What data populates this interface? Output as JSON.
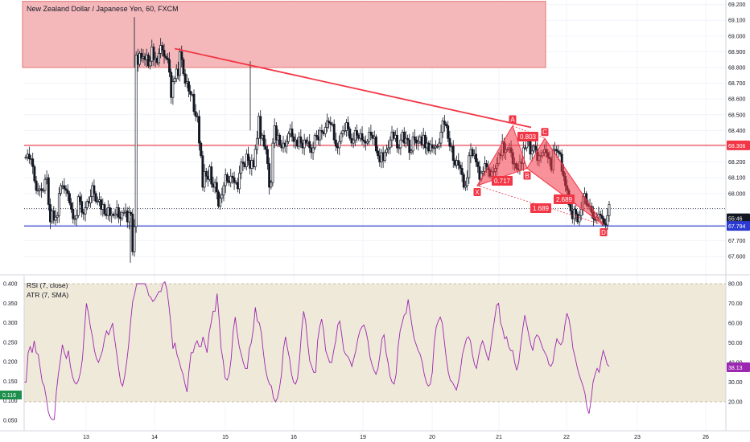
{
  "chart_data": [
    {
      "type": "candlestick",
      "title": "New Zealand Dollar / Japanese Yen, 60, FXCM",
      "symbol": "NZDJPY",
      "timeframe": "60",
      "source": "FXCM",
      "ylim": [
        67.5,
        69.22
      ],
      "yticks": [
        "69.200",
        "69.100",
        "69.000",
        "68.900",
        "68.800",
        "68.700",
        "68.600",
        "68.500",
        "68.400",
        "68.300",
        "68.200",
        "68.100",
        "68.000",
        "67.900",
        "67.800",
        "67.700",
        "67.600"
      ],
      "xticks": [
        "13",
        "14",
        "15",
        "16",
        "19",
        "20",
        "21",
        "22",
        "23",
        "26"
      ],
      "close_series": [
        68.23,
        68.25,
        68.22,
        68.22,
        68.17,
        68.08,
        68.02,
        68.02,
        68.03,
        68.02,
        68.02,
        68.09,
        68.1,
        67.93,
        67.82,
        67.89,
        67.83,
        67.85,
        67.86,
        68.0,
        68.05,
        68.05,
        68.03,
        68.02,
        68.0,
        67.94,
        67.9,
        67.84,
        67.84,
        67.86,
        67.98,
        67.95,
        67.88,
        67.87,
        67.91,
        67.95,
        67.94,
        67.98,
        68.05,
        68.0,
        67.95,
        67.95,
        67.96,
        67.9,
        67.93,
        67.87,
        67.86,
        67.91,
        67.86,
        67.87,
        67.86,
        67.87,
        67.91,
        67.85,
        67.84,
        67.88,
        67.88,
        67.89,
        67.82,
        67.88,
        67.87,
        67.63,
        67.79,
        68.88,
        68.82,
        68.89,
        68.86,
        68.87,
        68.85,
        68.88,
        68.81,
        68.84,
        68.93,
        68.85,
        68.86,
        68.83,
        68.89,
        68.94,
        68.91,
        68.87,
        68.86,
        68.85,
        68.77,
        68.61,
        68.71,
        68.73,
        68.79,
        68.75,
        68.9,
        68.85,
        68.76,
        68.7,
        68.71,
        68.65,
        68.63,
        68.63,
        68.52,
        68.49,
        68.49,
        68.32,
        68.24,
        68.04,
        68.14,
        68.11,
        68.09,
        68.17,
        68.06,
        68.04,
        68.07,
        68.01,
        67.92,
        67.97,
        67.99,
        68.05,
        68.12,
        68.08,
        68.07,
        68.11,
        68.1,
        68.07,
        68.07,
        68.03,
        68.13,
        68.2,
        68.19,
        68.17,
        68.25,
        68.21,
        68.16,
        68.21,
        68.17,
        68.28,
        68.35,
        68.49,
        68.35,
        68.37,
        68.3,
        68.28,
        68.19,
        68.04,
        68.07,
        68.32,
        68.43,
        68.34,
        68.37,
        68.31,
        68.29,
        68.32,
        68.3,
        68.33,
        68.38,
        68.41,
        68.36,
        68.33,
        68.34,
        68.3,
        68.36,
        68.32,
        68.29,
        68.34,
        68.32,
        68.33,
        68.29,
        68.26,
        68.29,
        68.37,
        68.36,
        68.34,
        68.4,
        68.39,
        68.38,
        68.42,
        68.46,
        68.45,
        68.44,
        68.44,
        68.34,
        68.3,
        68.29,
        68.33,
        68.38,
        68.4,
        68.4,
        68.45,
        68.41,
        68.35,
        68.32,
        68.34,
        68.4,
        68.37,
        68.35,
        68.38,
        68.34,
        68.33,
        68.32,
        68.33,
        68.39,
        68.37,
        68.35,
        68.36,
        68.27,
        68.24,
        68.2,
        68.26,
        68.21,
        68.26,
        68.28,
        68.29,
        68.34,
        68.39,
        68.35,
        68.37,
        68.29,
        68.29,
        68.34,
        68.39,
        68.32,
        68.35,
        68.34,
        68.26,
        68.27,
        68.36,
        68.34,
        68.32,
        68.33,
        68.36,
        68.31,
        68.37,
        68.29,
        68.32,
        68.27,
        68.31,
        68.29,
        68.29,
        68.3,
        68.3,
        68.32,
        68.39,
        68.46,
        68.44,
        68.43,
        68.35,
        68.3,
        68.3,
        68.21,
        68.18,
        68.21,
        68.18,
        68.16,
        68.12,
        68.04,
        68.05,
        68.1,
        68.24,
        68.28,
        68.24,
        68.25,
        68.2,
        68.17,
        68.09,
        68.13,
        68.14,
        68.19,
        68.17,
        68.15,
        68.11,
        68.14,
        68.14,
        68.16,
        68.19,
        68.25,
        68.24,
        68.33,
        68.26,
        68.28,
        68.28,
        68.29,
        68.26,
        68.19,
        68.19,
        68.16,
        68.15,
        68.2,
        68.19,
        68.29,
        68.29,
        68.34,
        68.33,
        68.25,
        68.27,
        68.3,
        68.28,
        68.21,
        68.24,
        68.24,
        68.26,
        68.28,
        68.26,
        68.23,
        68.22,
        68.15,
        68.28,
        68.28,
        68.27,
        68.26,
        68.25,
        68.14,
        68.11,
        68.05,
        68.02,
        67.93,
        67.89,
        67.84,
        67.9,
        67.87,
        67.82,
        67.86,
        67.9,
        67.98,
        68.0,
        67.93,
        67.92,
        67.92,
        67.88,
        67.84,
        67.83,
        67.85,
        67.87,
        67.86,
        67.84,
        67.81,
        67.8,
        67.86,
        67.93
      ],
      "levels": [
        {
          "label": "68.306",
          "color": "#f23645"
        },
        {
          "label": "67.904",
          "color": "#131722"
        },
        {
          "label": "67.794",
          "color": "#2b3bd2"
        }
      ],
      "countdown": "55:46",
      "supply_zone": {
        "from": 68.8,
        "to": 69.22,
        "color": "#f23645"
      },
      "trendline": {
        "from": 68.92,
        "to": 68.42,
        "color": "#f23645"
      },
      "pattern": {
        "points": [
          {
            "label": "X",
            "value": 68.05
          },
          {
            "label": "A",
            "value": 68.43
          },
          {
            "label": "B",
            "value": 68.16
          },
          {
            "label": "C",
            "value": 68.35
          },
          {
            "label": "D",
            "value": 67.8
          }
        ],
        "ratios": [
          "0.803",
          "0.717",
          "2.689",
          "1.689"
        ],
        "color": "#f23645"
      }
    },
    {
      "type": "line",
      "series": [
        {
          "name": "RSI (7, close)",
          "color": "#9c27b0",
          "last": "38.13",
          "axis": "right",
          "values": [
            30,
            30,
            45,
            48,
            45,
            51,
            45,
            44,
            37,
            30,
            28,
            22,
            15,
            12,
            11,
            11,
            25,
            34,
            41,
            49,
            45,
            42,
            46,
            38,
            33,
            30,
            29,
            31,
            35,
            42,
            56,
            70,
            65,
            58,
            53,
            46,
            42,
            40,
            43,
            46,
            52,
            56,
            54,
            57,
            60,
            52,
            45,
            37,
            30,
            28,
            33,
            40,
            49,
            61,
            71,
            75,
            80,
            80,
            80,
            80,
            80,
            78,
            74,
            73,
            71,
            72,
            74,
            76,
            76,
            80,
            81,
            77,
            69,
            59,
            47,
            50,
            44,
            41,
            37,
            34,
            29,
            25,
            36,
            45,
            45,
            49,
            51,
            48,
            48,
            53,
            49,
            45,
            55,
            60,
            66,
            66,
            75,
            62,
            47,
            41,
            32,
            31,
            34,
            42,
            56,
            63,
            55,
            48,
            44,
            40,
            37,
            37,
            47,
            50,
            57,
            68,
            61,
            60,
            55,
            45,
            37,
            32,
            29,
            28,
            22,
            20,
            22,
            27,
            34,
            47,
            53,
            47,
            42,
            34,
            30,
            29,
            32,
            42,
            56,
            66,
            61,
            50,
            41,
            38,
            35,
            35,
            51,
            58,
            62,
            56,
            46,
            43,
            40,
            40,
            46,
            51,
            59,
            61,
            54,
            46,
            44,
            43,
            41,
            38,
            42,
            46,
            52,
            56,
            58,
            59,
            56,
            51,
            43,
            39,
            36,
            34,
            37,
            44,
            52,
            54,
            45,
            40,
            33,
            30,
            29,
            34,
            48,
            56,
            60,
            64,
            65,
            72,
            65,
            58,
            52,
            49,
            46,
            44,
            40,
            34,
            30,
            28,
            29,
            35,
            50,
            58,
            61,
            63,
            60,
            51,
            42,
            35,
            31,
            30,
            28,
            26,
            30,
            36,
            44,
            48,
            52,
            53,
            51,
            44,
            39,
            37,
            43,
            48,
            51,
            48,
            44,
            41,
            47,
            55,
            62,
            69,
            70,
            60,
            57,
            52,
            53,
            48,
            46,
            46,
            40,
            36,
            40,
            49,
            57,
            64,
            59,
            54,
            49,
            46,
            52,
            54,
            53,
            50,
            47,
            45,
            43,
            39,
            38,
            40,
            47,
            52,
            50,
            49,
            51,
            59,
            65,
            62,
            56,
            47,
            43,
            38,
            34,
            31,
            28,
            24,
            17,
            14,
            21,
            30,
            34,
            37,
            35,
            41,
            46,
            43,
            39,
            38
          ]
        }
      ],
      "secondary": {
        "name": "ATR (7, SMA)",
        "last": "0.116",
        "axis": "left"
      },
      "left_yticks": [
        "0.400",
        "0.350",
        "0.300",
        "0.250",
        "0.200",
        "0.150",
        "0.100",
        "0.050"
      ],
      "right_yticks": [
        "80.00",
        "70.00",
        "60.00",
        "50.00",
        "40.00",
        "30.00",
        "20.00"
      ],
      "band": [
        20,
        80
      ]
    }
  ],
  "colors": {
    "bg": "#ffffff",
    "grid": "#f0f3fa",
    "candle": "#131722",
    "rsi": "#9c27b0",
    "band": "#e8dfc8"
  }
}
